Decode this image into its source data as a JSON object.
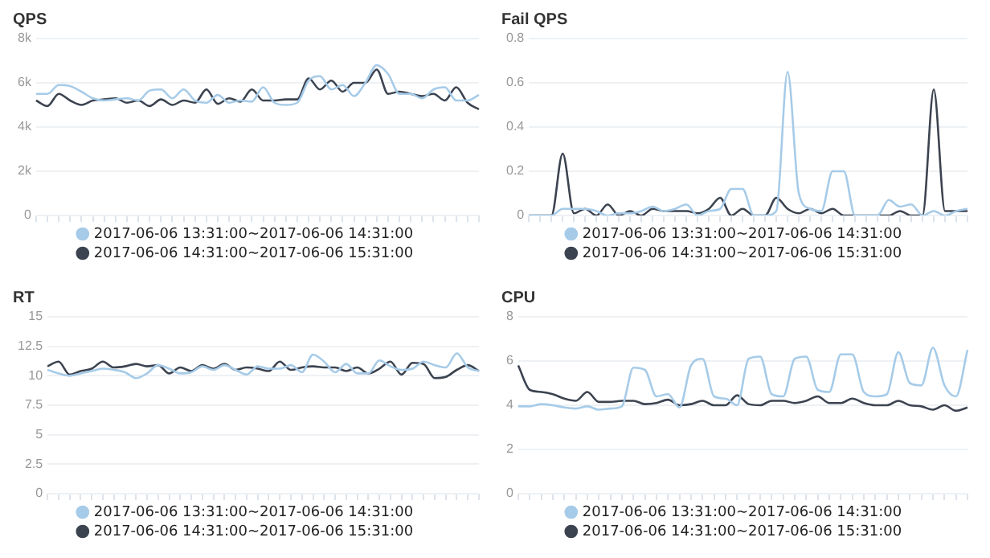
{
  "chart_data": [
    {
      "type": "line",
      "title": "QPS",
      "categories": [
        null,
        null,
        null,
        null,
        null,
        null,
        null,
        null,
        null,
        null,
        null,
        null,
        null,
        null,
        null,
        null,
        null,
        null,
        null,
        null,
        null,
        null,
        null,
        null,
        null,
        null,
        null,
        null,
        null,
        null,
        null,
        null,
        null,
        null,
        null,
        null,
        null,
        null,
        null,
        null
      ],
      "series": [
        {
          "name": "2017-06-06 13:31:00~2017-06-06 14:31:00",
          "color": "#a6cbe8",
          "values": [
            5500,
            5500,
            5900,
            5850,
            5600,
            5300,
            5200,
            5250,
            5300,
            5200,
            5650,
            5700,
            5300,
            5700,
            5200,
            5100,
            5450,
            5100,
            5200,
            5150,
            5800,
            5100,
            5000,
            5100,
            6100,
            6300,
            5700,
            5900,
            5400,
            6000,
            6800,
            6400,
            5500,
            5500,
            5300,
            5700,
            5800,
            5200,
            5200,
            5450
          ]
        },
        {
          "name": "2017-06-06 14:31:00~2017-06-06 15:31:00",
          "color": "#3c4350",
          "values": [
            5200,
            4950,
            5500,
            5200,
            5000,
            5200,
            5250,
            5300,
            5100,
            5200,
            4950,
            5250,
            5000,
            5200,
            5100,
            5700,
            5050,
            5300,
            5150,
            5700,
            5200,
            5200,
            5250,
            5250,
            6200,
            5700,
            6100,
            5600,
            6000,
            6000,
            6600,
            5500,
            5600,
            5500,
            5400,
            5500,
            5200,
            5800,
            5100,
            4800
          ]
        }
      ],
      "ylim": [
        0,
        8000
      ],
      "yticks": [
        0,
        {
          "value": 2000,
          "label": "2k"
        },
        {
          "value": 4000,
          "label": "4k"
        },
        {
          "value": 6000,
          "label": "6k"
        },
        {
          "value": 8000,
          "label": "8k"
        }
      ],
      "grid": "y",
      "legend": "bottom",
      "tick_labels": "y",
      "marker": "none",
      "line_style": "solid"
    },
    {
      "type": "line",
      "title": "Fail QPS",
      "categories": [
        null,
        null,
        null,
        null,
        null,
        null,
        null,
        null,
        null,
        null,
        null,
        null,
        null,
        null,
        null,
        null,
        null,
        null,
        null,
        null,
        null,
        null,
        null,
        null,
        null,
        null,
        null,
        null,
        null,
        null,
        null,
        null,
        null,
        null,
        null,
        null,
        null,
        null,
        null,
        null
      ],
      "series": [
        {
          "name": "2017-06-06 13:31:00~2017-06-06 14:31:00",
          "color": "#a6cbe8",
          "values": [
            0,
            0,
            0,
            0.03,
            0.03,
            0.03,
            0.02,
            0,
            0.01,
            0.01,
            0.02,
            0.04,
            0.02,
            0.03,
            0.05,
            0,
            0.02,
            0.03,
            0.12,
            0.12,
            0,
            0,
            0.02,
            0.65,
            0.1,
            0.03,
            0.02,
            0.2,
            0.2,
            0,
            0,
            0,
            0.07,
            0.04,
            0.05,
            0,
            0.02,
            0,
            0.02,
            0.03
          ]
        },
        {
          "name": "2017-06-06 14:31:00~2017-06-06 15:31:00",
          "color": "#3c4350",
          "values": [
            0,
            0,
            0,
            0.28,
            0.01,
            0.03,
            0,
            0.05,
            0,
            0.02,
            0,
            0.03,
            0.02,
            0.02,
            0.02,
            0.01,
            0.03,
            0.08,
            0,
            0.03,
            0,
            0,
            0.08,
            0.03,
            0.01,
            0.03,
            0.01,
            0.03,
            0,
            0,
            0,
            0,
            0,
            0.02,
            0,
            0,
            0.57,
            0.02,
            0.02,
            0.02
          ]
        }
      ],
      "ylim": [
        0,
        0.8
      ],
      "yticks": [
        0,
        0.2,
        0.4,
        0.6,
        0.8
      ],
      "grid": "y",
      "legend": "bottom",
      "tick_labels": "y",
      "marker": "none",
      "line_style": "solid"
    },
    {
      "type": "line",
      "title": "RT",
      "categories": [
        null,
        null,
        null,
        null,
        null,
        null,
        null,
        null,
        null,
        null,
        null,
        null,
        null,
        null,
        null,
        null,
        null,
        null,
        null,
        null,
        null,
        null,
        null,
        null,
        null,
        null,
        null,
        null,
        null,
        null,
        null,
        null,
        null,
        null,
        null,
        null,
        null,
        null,
        null,
        null
      ],
      "series": [
        {
          "name": "2017-06-06 13:31:00~2017-06-06 14:31:00",
          "color": "#a6cbe8",
          "values": [
            10.5,
            10.2,
            10,
            10.2,
            10.4,
            10.6,
            10.5,
            10.3,
            9.8,
            10.2,
            10.9,
            10.6,
            10.2,
            10.3,
            10.8,
            10.5,
            10.9,
            10.5,
            10.1,
            10.8,
            10.6,
            10.6,
            10.9,
            10.3,
            11.8,
            11.2,
            10.3,
            11,
            10.2,
            10.2,
            11.3,
            10.8,
            10.5,
            10.6,
            11.2,
            10.9,
            10.7,
            11.9,
            10.7,
            10.4
          ]
        },
        {
          "name": "2017-06-06 14:31:00~2017-06-06 15:31:00",
          "color": "#3c4350",
          "values": [
            10.8,
            11.2,
            10.1,
            10.4,
            10.6,
            11.2,
            10.7,
            10.8,
            11,
            10.8,
            10.9,
            10.2,
            10.7,
            10.4,
            10.9,
            10.6,
            11,
            10.5,
            10.7,
            10.6,
            10.4,
            11.2,
            10.5,
            10.7,
            10.8,
            10.7,
            10.7,
            10.4,
            10.7,
            10.2,
            10.6,
            11.2,
            10.1,
            11.1,
            11,
            9.8,
            9.9,
            10.5,
            10.9,
            10.4
          ]
        }
      ],
      "ylim": [
        0,
        15
      ],
      "yticks": [
        0,
        2.5,
        5,
        7.5,
        10,
        12.5,
        15
      ],
      "grid": "y",
      "legend": "bottom",
      "tick_labels": "y",
      "marker": "none",
      "line_style": "solid"
    },
    {
      "type": "line",
      "title": "CPU",
      "categories": [
        null,
        null,
        null,
        null,
        null,
        null,
        null,
        null,
        null,
        null,
        null,
        null,
        null,
        null,
        null,
        null,
        null,
        null,
        null,
        null,
        null,
        null,
        null,
        null,
        null,
        null,
        null,
        null,
        null,
        null,
        null,
        null,
        null,
        null,
        null,
        null,
        null,
        null,
        null,
        null
      ],
      "series": [
        {
          "name": "2017-06-06 13:31:00~2017-06-06 14:31:00",
          "color": "#a6cbe8",
          "values": [
            3.95,
            3.95,
            4.05,
            4,
            3.9,
            3.85,
            3.95,
            3.8,
            3.85,
            3.95,
            5.7,
            5.6,
            4.4,
            4.5,
            3.9,
            5.8,
            6.1,
            4.4,
            4.3,
            4.0,
            6.1,
            6.2,
            4.5,
            4.4,
            6.1,
            6.2,
            4.7,
            4.6,
            6.3,
            6.3,
            4.6,
            4.4,
            4.5,
            6.4,
            5.0,
            4.9,
            6.6,
            4.9,
            4.4,
            6.5
          ]
        },
        {
          "name": "2017-06-06 14:31:00~2017-06-06 15:31:00",
          "color": "#3c4350",
          "values": [
            5.8,
            4.7,
            4.6,
            4.5,
            4.3,
            4.2,
            4.6,
            4.15,
            4.15,
            4.2,
            4.2,
            4.05,
            4.1,
            4.25,
            4.0,
            4.05,
            4.2,
            4.0,
            4.0,
            4.45,
            4.05,
            4.0,
            4.2,
            4.2,
            4.1,
            4.2,
            4.4,
            4.1,
            4.1,
            4.3,
            4.1,
            4.0,
            4.0,
            4.2,
            4.0,
            3.95,
            3.8,
            4.0,
            3.75,
            3.9
          ]
        }
      ],
      "ylim": [
        0,
        8
      ],
      "yticks": [
        0,
        2,
        4,
        6,
        8
      ],
      "grid": "y",
      "legend": "bottom",
      "tick_labels": "y",
      "marker": "none",
      "line_style": "solid"
    }
  ]
}
